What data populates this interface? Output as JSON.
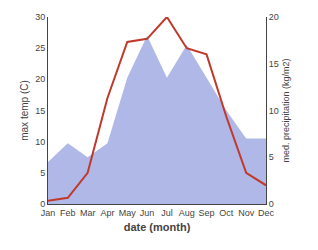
{
  "chart_data": {
    "type": "line",
    "categories": [
      "Jan",
      "Feb",
      "Mar",
      "Apr",
      "May",
      "Jun",
      "Jul",
      "Aug",
      "Sep",
      "Oct",
      "Nov",
      "Dec"
    ],
    "series": [
      {
        "type": "area",
        "axis": "y2",
        "color": "#b0b8e8",
        "values": [
          4.5,
          6.5,
          5.0,
          6.5,
          13.5,
          18.0,
          13.5,
          17.0,
          13.5,
          10.0,
          7.0,
          7.0
        ]
      },
      {
        "type": "line",
        "color": "#c0392b",
        "values": [
          0.5,
          1.0,
          5.0,
          17.0,
          26.0,
          26.5,
          30.0,
          25.0,
          24.0,
          14.0,
          5.0,
          3.0
        ]
      }
    ],
    "xlabel": "date (month)",
    "ylabel": "max temp (C)",
    "y2label": "med. precipitation (kg/m2)",
    "ylim": [
      0,
      30
    ],
    "yticks": [
      0,
      5,
      10,
      15,
      20,
      25,
      30
    ],
    "y2lim": [
      0,
      20
    ],
    "y2ticks": [
      0,
      5,
      10,
      15,
      20
    ],
    "grid": false
  }
}
